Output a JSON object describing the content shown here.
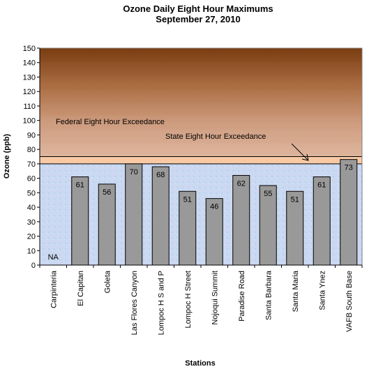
{
  "chart_data": {
    "type": "bar",
    "title": "Ozone Daily Eight Hour Maximums",
    "subtitle": "September 27, 2010",
    "xlabel": "Stations",
    "ylabel": "Ozone (ppb)",
    "ylim": [
      0,
      150
    ],
    "yticks": [
      "0",
      "10",
      "20",
      "30",
      "40",
      "50",
      "60",
      "70",
      "80",
      "90",
      "100",
      "110",
      "120",
      "130",
      "140",
      "150"
    ],
    "categories": [
      "Carpinteria",
      "El Capitan",
      "Goleta",
      "Las Flores Canyon",
      "Lompoc H S and P",
      "Lompoc H Street",
      "Nojoqui Summit",
      "Paradise Road",
      "Santa Barbara",
      "Santa Maria",
      "Santa Ynez",
      "VAFB South Base"
    ],
    "values": [
      null,
      61,
      56,
      70,
      68,
      51,
      46,
      62,
      55,
      51,
      61,
      73
    ],
    "value_labels": [
      "NA",
      "61",
      "56",
      "70",
      "68",
      "51",
      "46",
      "62",
      "55",
      "51",
      "61",
      "73"
    ],
    "thresholds": {
      "state": 70,
      "federal": 75
    },
    "annotations": {
      "federal": "Federal Eight Hour Exceedance",
      "state": "State Eight Hour Exceedance"
    },
    "colors": {
      "bar": "#999999",
      "bar_stroke": "#000000",
      "background_low": "#c8d8f0",
      "band_state": "#f7c9a4",
      "band_top": "#7a3d12",
      "band_bottom": "#d4a386"
    },
    "grid": false,
    "legend": "none"
  }
}
